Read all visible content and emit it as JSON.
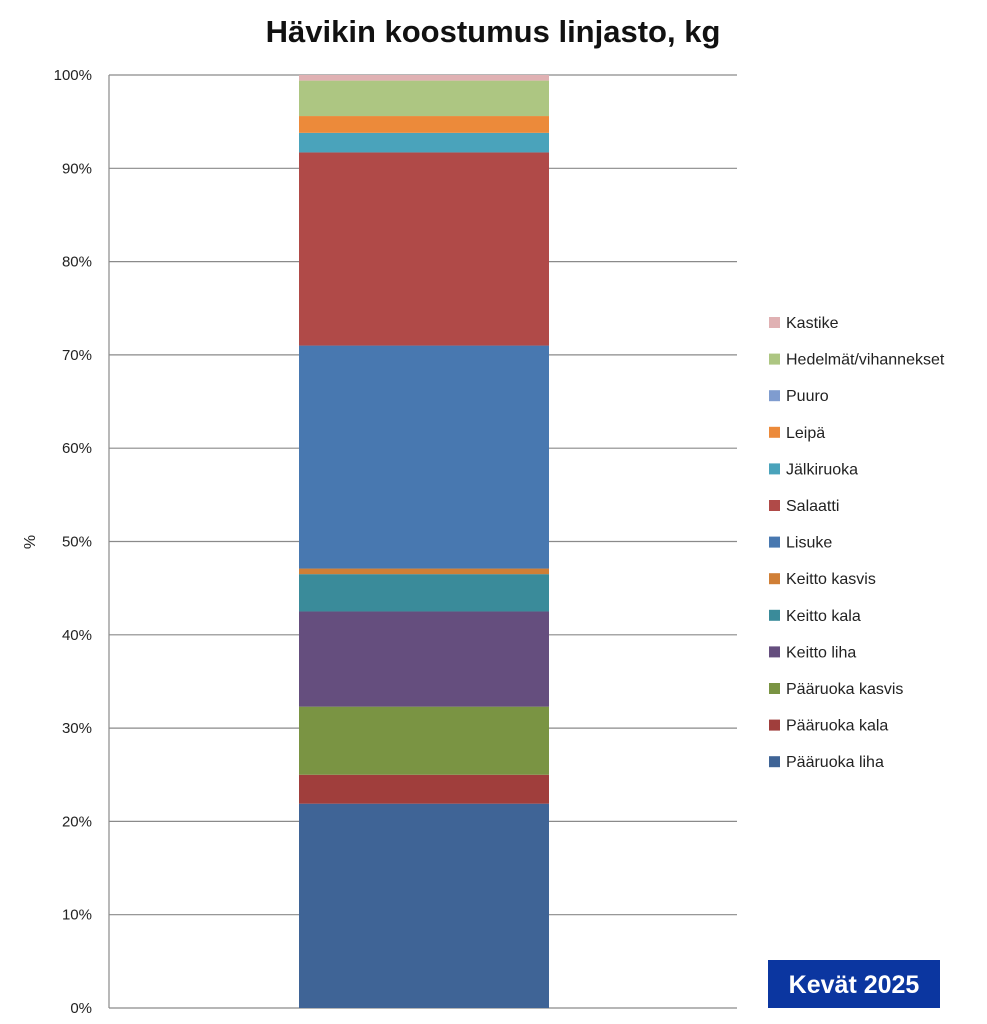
{
  "chart_data": {
    "type": "bar",
    "stacked": "100%",
    "title": "Hävikin koostumus linjasto, kg",
    "xlabel": "",
    "ylabel": "%",
    "ylim": [
      0,
      100
    ],
    "yticks": [
      "0%",
      "10%",
      "20%",
      "30%",
      "40%",
      "50%",
      "60%",
      "70%",
      "80%",
      "90%",
      "100%"
    ],
    "grid": true,
    "legend_position": "right",
    "series": [
      {
        "name": "Pääruoka liha",
        "value": 21.9,
        "color": "#3f6496"
      },
      {
        "name": "Pääruoka kala",
        "value": 3.1,
        "color": "#a03e3c"
      },
      {
        "name": "Pääruoka kasvis",
        "value": 7.3,
        "color": "#7a9443"
      },
      {
        "name": "Keitto liha",
        "value": 10.2,
        "color": "#654e7e"
      },
      {
        "name": "Keitto kala",
        "value": 4.0,
        "color": "#3a8b9a"
      },
      {
        "name": "Keitto kasvis",
        "value": 0.6,
        "color": "#d07f36"
      },
      {
        "name": "Lisuke",
        "value": 23.9,
        "color": "#4878b0"
      },
      {
        "name": "Salaatti",
        "value": 20.7,
        "color": "#b04a48"
      },
      {
        "name": "Jälkiruoka",
        "value": 2.1,
        "color": "#4aa3bb"
      },
      {
        "name": "Leipä",
        "value": 1.8,
        "color": "#ec8a3a"
      },
      {
        "name": "Puuro",
        "value": 0.0,
        "color": "#7f9ccf"
      },
      {
        "name": "Hedelmät/vihannekset",
        "value": 3.8,
        "color": "#adc682"
      },
      {
        "name": "Kastike",
        "value": 0.6,
        "color": "#e0b1b3"
      }
    ]
  },
  "badge": {
    "label": "Kevät 2025",
    "color": "#0b36a0"
  }
}
